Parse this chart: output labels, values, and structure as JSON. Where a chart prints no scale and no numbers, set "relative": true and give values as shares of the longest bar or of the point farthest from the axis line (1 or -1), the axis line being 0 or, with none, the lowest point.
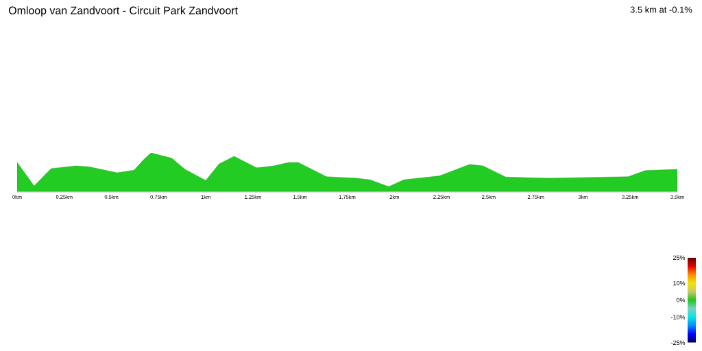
{
  "chart_data": {
    "type": "area",
    "title": "Omloop van Zandvoort - Circuit Park Zandvoort",
    "annotations": [
      "3.5 km at -0.1%"
    ],
    "relative": true,
    "x": [
      0,
      0.09,
      0.18,
      0.31,
      0.38,
      0.53,
      0.62,
      0.67,
      0.71,
      0.82,
      0.89,
      1.0,
      1.07,
      1.15,
      1.27,
      1.36,
      1.44,
      1.49,
      1.64,
      1.8,
      1.87,
      1.97,
      2.05,
      2.24,
      2.33,
      2.4,
      2.47,
      2.59,
      2.82,
      3.24,
      3.33,
      3.5
    ],
    "values": [
      0.75,
      0.14,
      0.59,
      0.66,
      0.64,
      0.48,
      0.55,
      0.82,
      1,
      0.86,
      0.57,
      0.28,
      0.71,
      0.91,
      0.61,
      0.66,
      0.75,
      0.75,
      0.38,
      0.34,
      0.3,
      0.12,
      0.3,
      0.4,
      0.57,
      0.7,
      0.66,
      0.37,
      0.34,
      0.38,
      0.54,
      0.57
    ],
    "color": "#22cc22",
    "xlim": [
      0,
      3.5
    ],
    "xticks": [
      {
        "value": 0,
        "label": "0km"
      },
      {
        "value": 0.25,
        "label": "0.25km"
      },
      {
        "value": 0.5,
        "label": "0.5km"
      },
      {
        "value": 0.75,
        "label": "0.75km"
      },
      {
        "value": 1,
        "label": "1km"
      },
      {
        "value": 1.25,
        "label": "1.25km"
      },
      {
        "value": 1.5,
        "label": "1.5km"
      },
      {
        "value": 1.75,
        "label": "1.75km"
      },
      {
        "value": 2,
        "label": "2km"
      },
      {
        "value": 2.25,
        "label": "2.25km"
      },
      {
        "value": 2.5,
        "label": "2.5km"
      },
      {
        "value": 2.75,
        "label": "2.75km"
      },
      {
        "value": 3,
        "label": "3km"
      },
      {
        "value": 3.25,
        "label": "3.25km"
      },
      {
        "value": 3.5,
        "label": "3.5km"
      }
    ],
    "clim": [
      -25,
      25
    ],
    "cticks": [
      {
        "value": -25,
        "label": "-25%"
      },
      {
        "value": -10,
        "label": "-10%"
      },
      {
        "value": 0,
        "label": "0%"
      },
      {
        "value": 10,
        "label": "10%"
      },
      {
        "value": 25,
        "label": "25%"
      }
    ]
  }
}
